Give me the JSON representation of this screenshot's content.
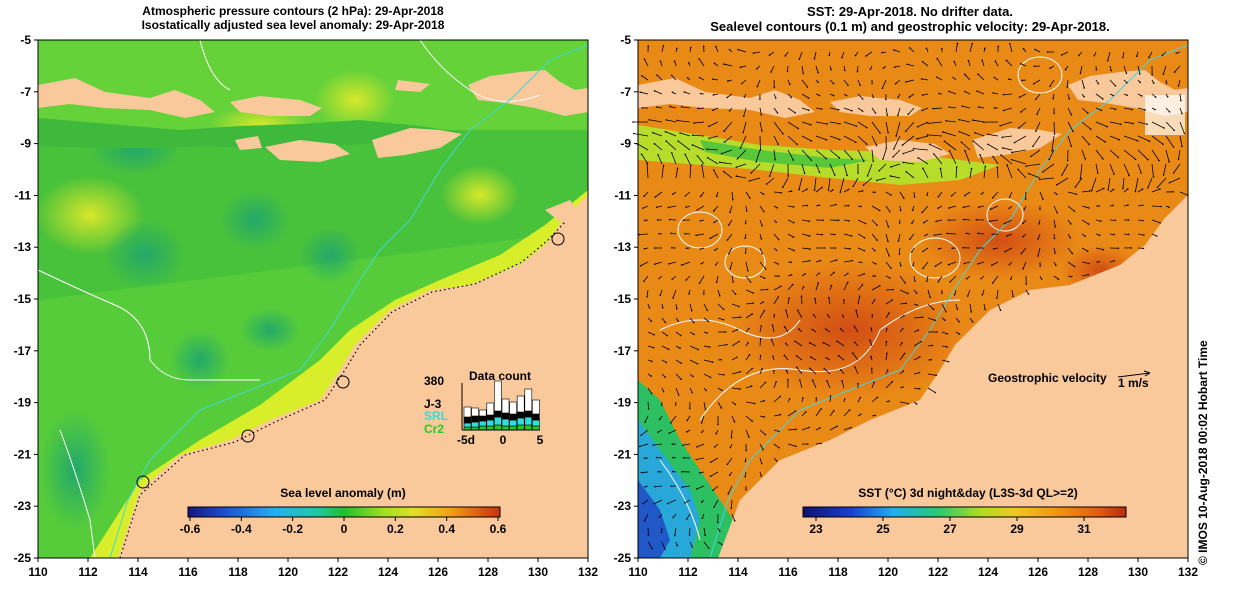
{
  "left_panel": {
    "title_line1": "Atmospheric pressure contours (2 hPa): 29-Apr-2018",
    "title_line2": "Isostatically adjusted sea level anomaly: 29-Apr-2018",
    "y_ticks": [
      "-5",
      "-7",
      "-9",
      "-11",
      "-13",
      "-15",
      "-17",
      "-19",
      "-21",
      "-23",
      "-25"
    ],
    "x_ticks": [
      "110",
      "112",
      "114",
      "116",
      "118",
      "120",
      "122",
      "124",
      "126",
      "128",
      "130",
      "132"
    ],
    "colorbar_label": "Sea level anomaly (m)",
    "colorbar_ticks": [
      "-0.6",
      "-0.4",
      "-0.2",
      "0",
      "0.2",
      "0.4",
      "0.6"
    ],
    "data_count": {
      "title": "Data count",
      "legend": [
        {
          "label": "380",
          "color": "#000000"
        },
        {
          "label": "J-3",
          "color": "#000000"
        },
        {
          "label": "SRL",
          "color": "#33dddd"
        },
        {
          "label": "Cr2",
          "color": "#22cc22"
        }
      ],
      "x_labels": [
        "-5d",
        "0",
        "5"
      ]
    }
  },
  "right_panel": {
    "title_line1": "SST: 29-Apr-2018. No drifter data.",
    "title_line2": "Sealevel contours (0.1 m) and geostrophic velocity: 29-Apr-2018.",
    "y_ticks": [
      "-5",
      "-7",
      "-9",
      "-11",
      "-13",
      "-15",
      "-17",
      "-19",
      "-21",
      "-23",
      "-25"
    ],
    "x_ticks": [
      "110",
      "112",
      "114",
      "116",
      "118",
      "120",
      "122",
      "124",
      "126",
      "128",
      "130",
      "132"
    ],
    "velocity_label": "Geostrophic velocity",
    "velocity_scale": "1 m/s",
    "colorbar_label": "SST (°C) 3d night&day (L3S-3d QL>=2)",
    "colorbar_ticks": [
      "23",
      "25",
      "27",
      "29",
      "31"
    ]
  },
  "credit": "©  IMOS 10-Aug-2018 00:02 Hobart Time",
  "colors": {
    "land": "#f9c89b",
    "sla_scale": [
      "#1a1a8c",
      "#1e50d0",
      "#25a8f0",
      "#22c8a0",
      "#1fbf2f",
      "#7fe01a",
      "#d8e82a",
      "#f3b413",
      "#e87010",
      "#c83010"
    ],
    "sst_scale": [
      "#101070",
      "#1840d0",
      "#22b0f0",
      "#28c870",
      "#90dc20",
      "#e8d020",
      "#f0a010",
      "#e06010",
      "#c03010"
    ]
  }
}
